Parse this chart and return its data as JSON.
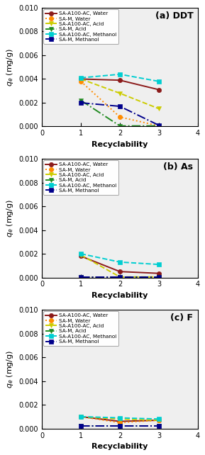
{
  "panels": [
    {
      "label": "(a) DDT",
      "series": [
        {
          "name": "SA-A100-AC, Water",
          "color": "#8B1A1A",
          "linestyle": "-",
          "marker": "o",
          "markerface": "#8B1A1A",
          "values": [
            0.004,
            0.0039,
            0.0031
          ]
        },
        {
          "name": "SA-M, Water",
          "color": "#FF8C00",
          "linestyle": ":",
          "marker": "o",
          "markerface": "#FF8C00",
          "values": [
            0.0038,
            0.0008,
            5e-05
          ]
        },
        {
          "name": "SA-A100-AC, Acid",
          "color": "#CCCC00",
          "linestyle": "--",
          "marker": "v",
          "markerface": "#CCCC00",
          "values": [
            0.004,
            0.0028,
            0.0015
          ]
        },
        {
          "name": "SA-M, Acid",
          "color": "#228B22",
          "linestyle": "-.",
          "marker": "v",
          "markerface": "#228B22",
          "values": [
            0.0022,
            5e-05,
            5e-05
          ]
        },
        {
          "name": "SA-A100-AC, Methanol",
          "color": "#00CED1",
          "linestyle": "--",
          "marker": "s",
          "markerface": "#00CED1",
          "values": [
            0.0041,
            0.0044,
            0.0038
          ]
        },
        {
          "name": "SA-M, Methanol",
          "color": "#00008B",
          "linestyle": "-.",
          "marker": "s",
          "markerface": "#00008B",
          "values": [
            0.002,
            0.0017,
            0.0001
          ]
        }
      ]
    },
    {
      "label": "(b) As",
      "series": [
        {
          "name": "SA-A100-AC, Water",
          "color": "#8B1A1A",
          "linestyle": "-",
          "marker": "o",
          "markerface": "#8B1A1A",
          "values": [
            0.0018,
            0.0005,
            0.00035
          ]
        },
        {
          "name": "SA-M, Water",
          "color": "#FF8C00",
          "linestyle": ":",
          "marker": "o",
          "markerface": "#FF8C00",
          "values": [
            5e-05,
            5e-05,
            5e-05
          ]
        },
        {
          "name": "SA-A100-AC, Acid",
          "color": "#CCCC00",
          "linestyle": "--",
          "marker": "v",
          "markerface": "#CCCC00",
          "values": [
            0.0019,
            5e-05,
            5e-05
          ]
        },
        {
          "name": "SA-M, Acid",
          "color": "#228B22",
          "linestyle": "-.",
          "marker": "v",
          "markerface": "#228B22",
          "values": [
            5e-05,
            5e-05,
            5e-05
          ]
        },
        {
          "name": "SA-A100-AC, Methanol",
          "color": "#00CED1",
          "linestyle": "--",
          "marker": "s",
          "markerface": "#00CED1",
          "values": [
            0.002,
            0.0013,
            0.0011
          ]
        },
        {
          "name": "SA-M, Methanol",
          "color": "#00008B",
          "linestyle": "-.",
          "marker": "s",
          "markerface": "#00008B",
          "values": [
            5e-05,
            5e-05,
            5e-05
          ]
        }
      ]
    },
    {
      "label": "(c) F",
      "series": [
        {
          "name": "SA-A100-AC, Water",
          "color": "#8B1A1A",
          "linestyle": "-",
          "marker": "o",
          "markerface": "#8B1A1A",
          "values": [
            0.001,
            0.0006,
            0.0007
          ]
        },
        {
          "name": "SA-M, Water",
          "color": "#FF8C00",
          "linestyle": ":",
          "marker": "o",
          "markerface": "#FF8C00",
          "values": [
            0.001,
            0.0005,
            0.0007
          ]
        },
        {
          "name": "SA-A100-AC, Acid",
          "color": "#CCCC00",
          "linestyle": "--",
          "marker": "v",
          "markerface": "#CCCC00",
          "values": [
            0.001,
            0.0008,
            0.0007
          ]
        },
        {
          "name": "SA-M, Acid",
          "color": "#228B22",
          "linestyle": "-.",
          "marker": "v",
          "markerface": "#228B22",
          "values": [
            0.0002,
            0.0002,
            0.0002
          ]
        },
        {
          "name": "SA-A100-AC, Methanol",
          "color": "#00CED1",
          "linestyle": "--",
          "marker": "s",
          "markerface": "#00CED1",
          "values": [
            0.001,
            0.0009,
            0.0008
          ]
        },
        {
          "name": "SA-M, Methanol",
          "color": "#00008B",
          "linestyle": "-.",
          "marker": "s",
          "markerface": "#00008B",
          "values": [
            0.0002,
            0.0002,
            0.0002
          ]
        }
      ]
    }
  ],
  "x": [
    1,
    2,
    3
  ],
  "xlim": [
    0,
    4
  ],
  "ylim": [
    0.0,
    0.01
  ],
  "yticks": [
    0.0,
    0.002,
    0.004,
    0.006,
    0.008,
    0.01
  ],
  "xlabel": "Recyclability",
  "ylabel": "$q_e$ (mg/g)",
  "bg_color": "#EFEFEF",
  "legend_fontsize": 5.2,
  "label_fontsize": 8,
  "tick_fontsize": 7,
  "title_fontsize": 9,
  "linewidth": 1.4,
  "markersize": 4.5
}
